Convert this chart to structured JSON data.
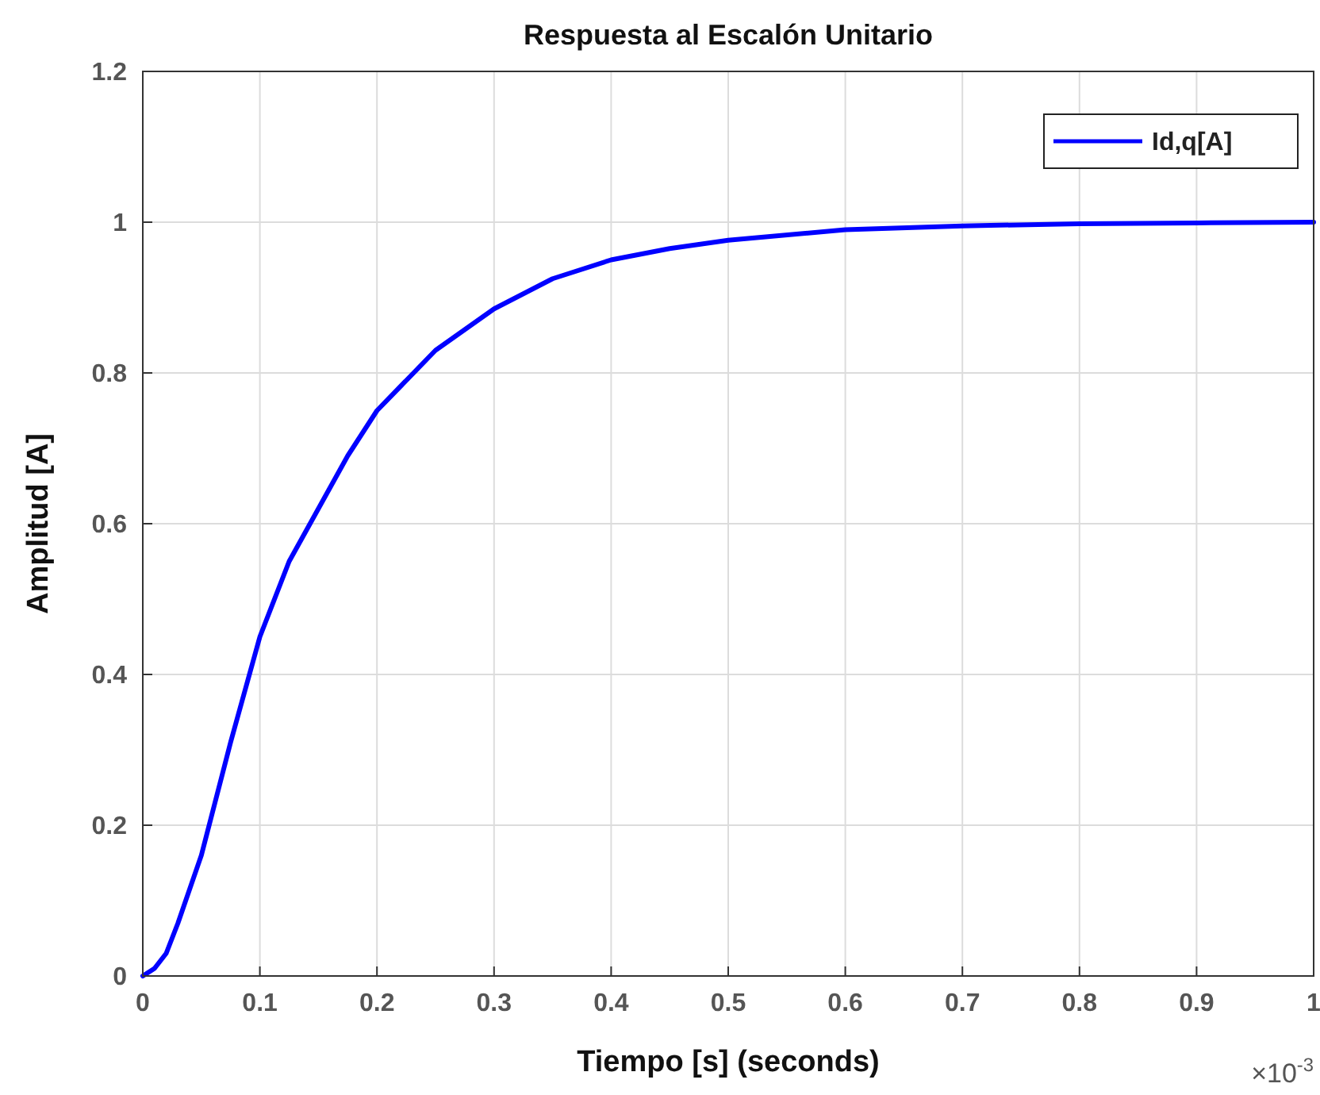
{
  "chart_data": {
    "type": "line",
    "title": "Respuesta al Escalón Unitario",
    "xlabel": "Tiempo [s] (seconds)",
    "ylabel": "Amplitud [A]",
    "annotations": [
      "×10$^{-3}$"
    ],
    "x": [
      0,
      0.01,
      0.02,
      0.03,
      0.05,
      0.075,
      0.1,
      0.125,
      0.15,
      0.175,
      0.2,
      0.25,
      0.3,
      0.35,
      0.4,
      0.45,
      0.5,
      0.6,
      0.7,
      0.8,
      0.9,
      1
    ],
    "series": [
      {
        "name": "Id,q[A]",
        "color": "#0000ff",
        "values": [
          0,
          0.01,
          0.03,
          0.07,
          0.16,
          0.31,
          0.45,
          0.55,
          0.62,
          0.69,
          0.75,
          0.83,
          0.885,
          0.925,
          0.95,
          0.965,
          0.976,
          0.99,
          0.995,
          0.998,
          0.999,
          1
        ]
      }
    ],
    "xlim": [
      0,
      1
    ],
    "xticks": [
      0,
      0.1,
      0.2,
      0.3,
      0.4,
      0.5,
      0.6,
      0.7,
      0.8,
      0.9,
      1
    ],
    "ylim": [
      0,
      1.2
    ],
    "yticks": [
      0,
      0.2,
      0.4,
      0.6,
      0.8,
      1,
      1.2
    ],
    "grid": true,
    "legend": "top right",
    "line_style": "solid",
    "marker": "none"
  }
}
